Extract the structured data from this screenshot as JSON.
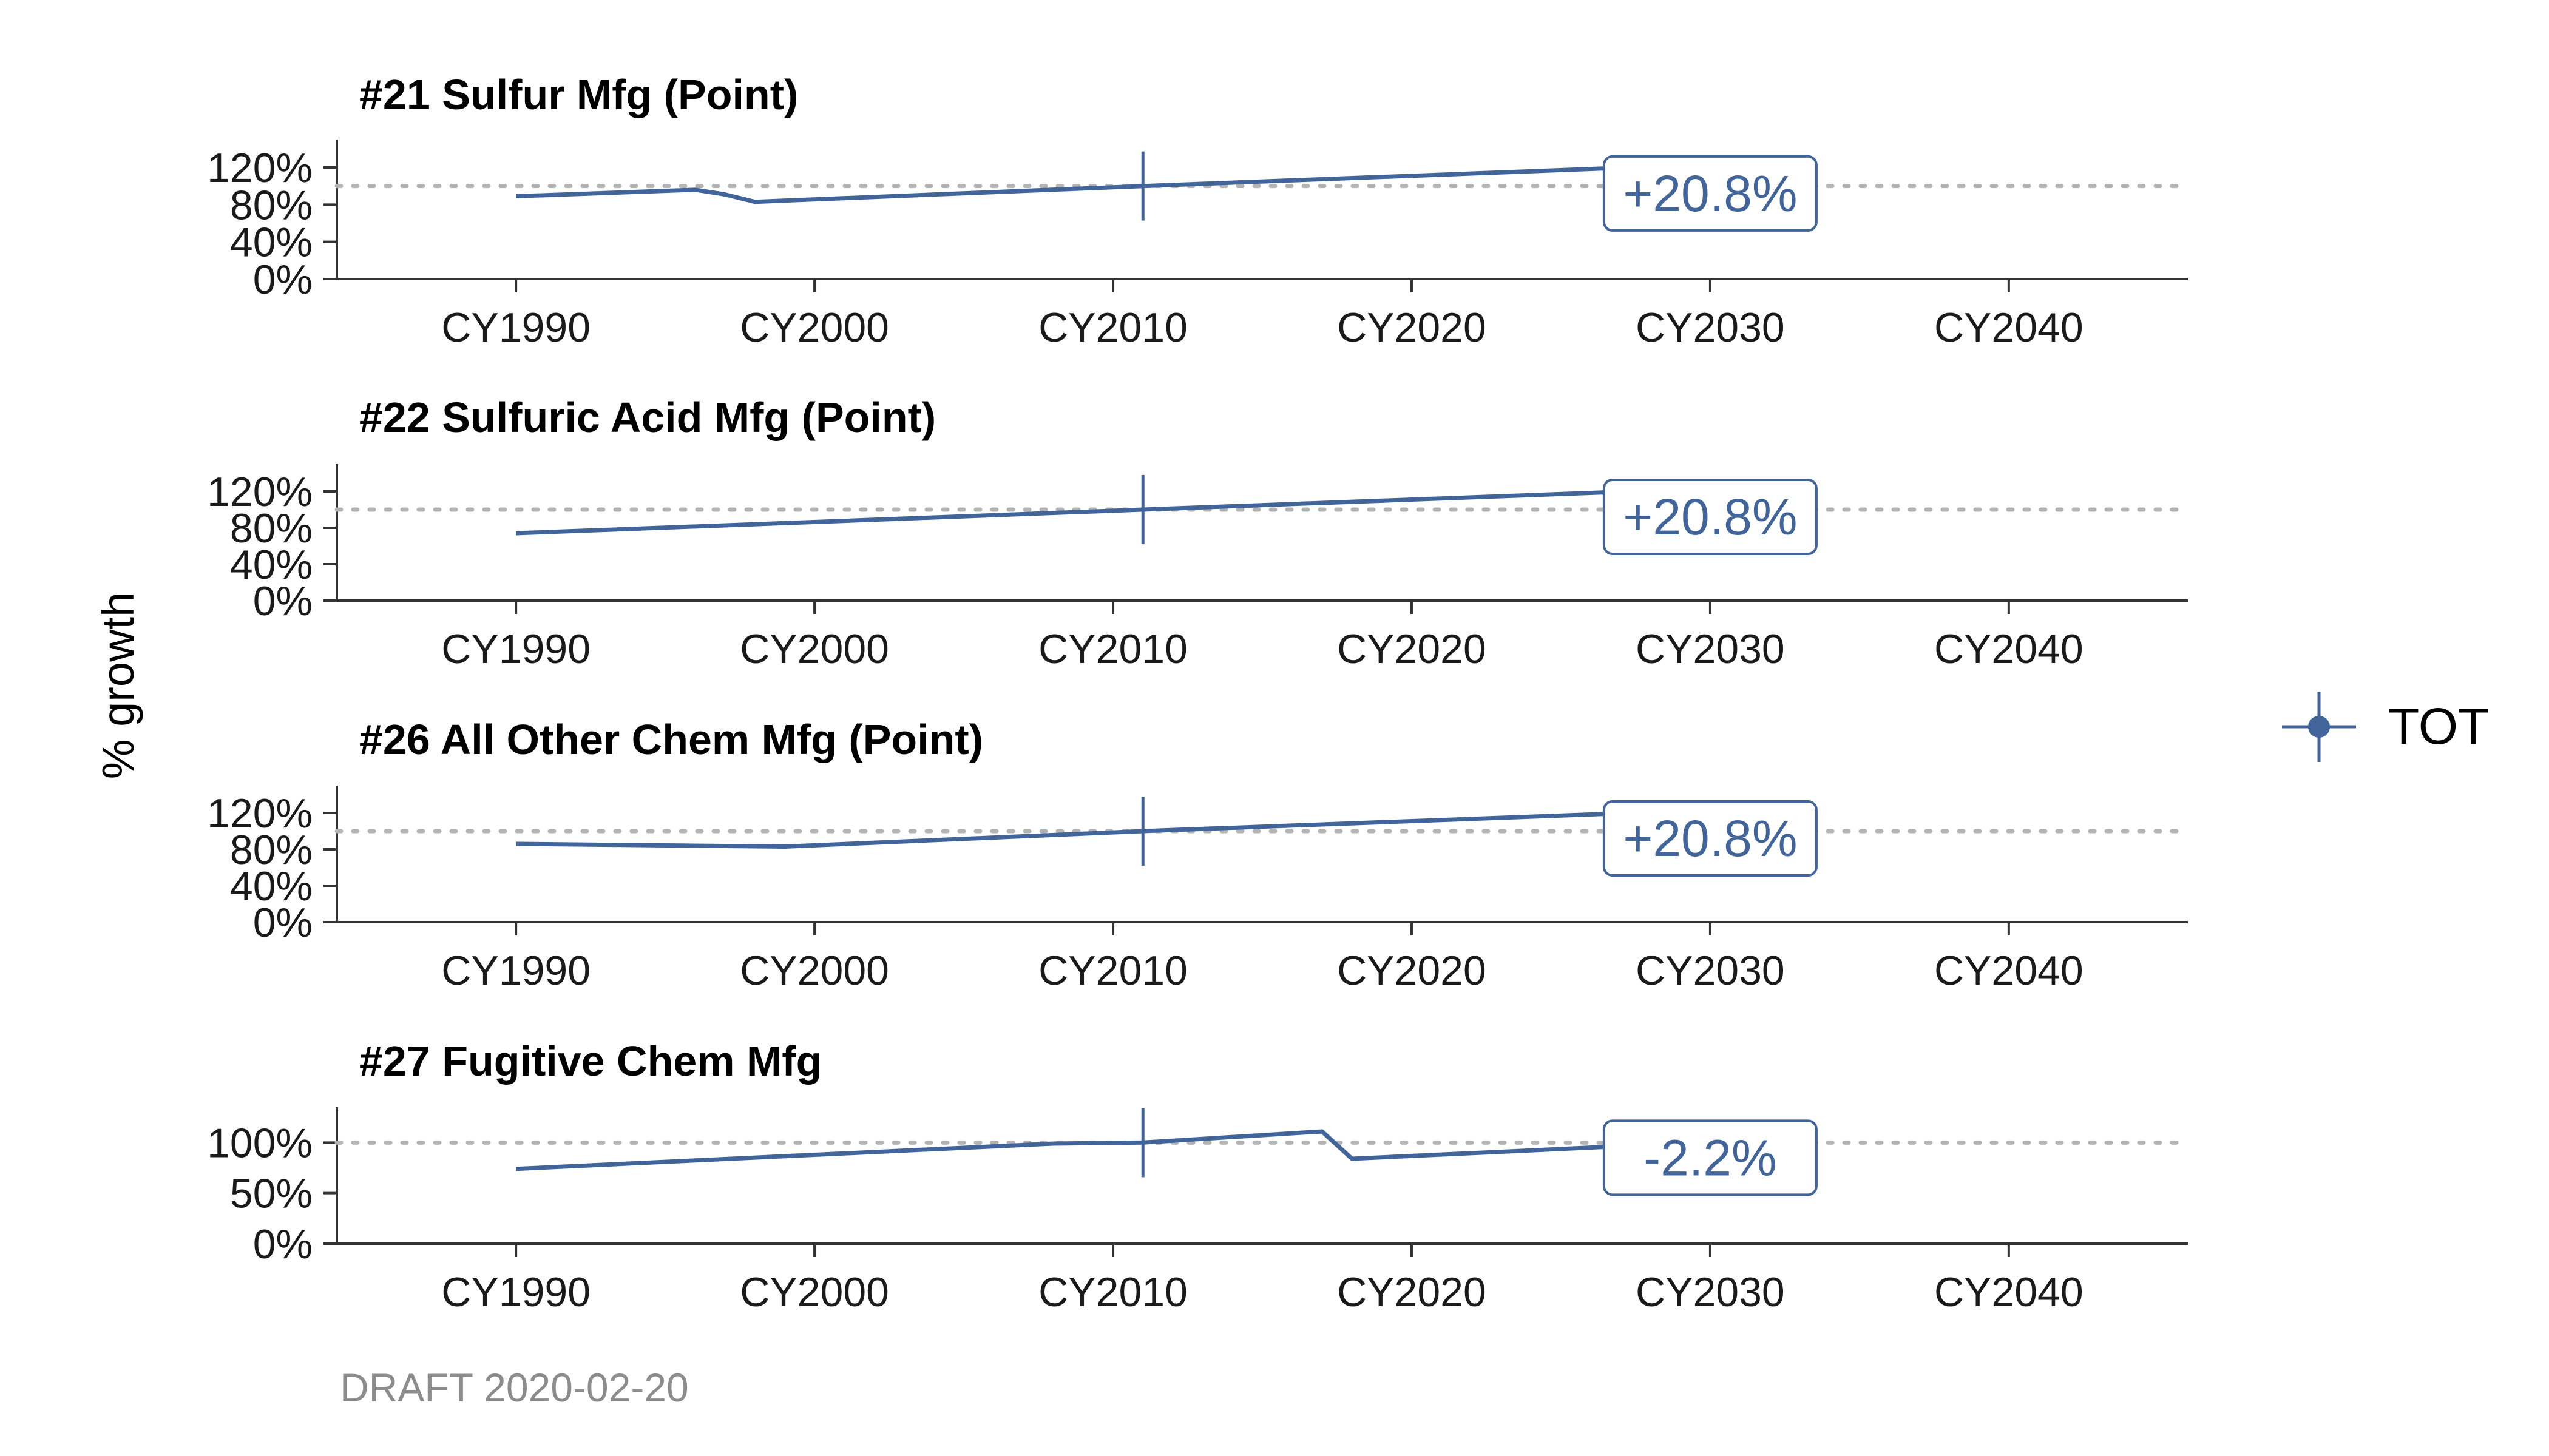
{
  "colors": {
    "series": "#41659a",
    "reference": "#b3b3b3",
    "axis": "#333333",
    "caption": "#8c8c8c"
  },
  "ylabel": "% growth",
  "caption": "DRAFT 2020-02-20",
  "legend": {
    "label": "TOT",
    "placement": "right"
  },
  "x_ticks": [
    {
      "value": 1990,
      "label": "CY1990"
    },
    {
      "value": 2000,
      "label": "CY2000"
    },
    {
      "value": 2010,
      "label": "CY2010"
    },
    {
      "value": 2020,
      "label": "CY2020"
    },
    {
      "value": 2030,
      "label": "CY2030"
    },
    {
      "value": 2040,
      "label": "CY2040"
    }
  ],
  "chart_data": [
    {
      "type": "line",
      "title": "#21 Sulfur Mfg (Point)",
      "xlim": [
        1984,
        2046
      ],
      "ylim": [
        0,
        1.5
      ],
      "y_ticks": [
        {
          "value": 0,
          "label": "0%"
        },
        {
          "value": 0.4,
          "label": "40%"
        },
        {
          "value": 0.8,
          "label": "80%"
        },
        {
          "value": 1.2,
          "label": "120%"
        }
      ],
      "reference_y": 1.0,
      "base_year": 2011,
      "annotation": {
        "text": "+20.8%",
        "x": 2030,
        "y": 0.92
      },
      "series": [
        {
          "x": [
            1990,
            1996,
            1997,
            1998,
            2011,
            2028
          ],
          "values": [
            0.89,
            0.96,
            0.91,
            0.83,
            1.0,
            1.208
          ]
        }
      ]
    },
    {
      "type": "line",
      "title": "#22 Sulfuric Acid Mfg (Point)",
      "xlim": [
        1984,
        2046
      ],
      "ylim": [
        0,
        1.5
      ],
      "y_ticks": [
        {
          "value": 0,
          "label": "0%"
        },
        {
          "value": 0.4,
          "label": "40%"
        },
        {
          "value": 0.8,
          "label": "80%"
        },
        {
          "value": 1.2,
          "label": "120%"
        }
      ],
      "reference_y": 1.0,
      "base_year": 2011,
      "annotation": {
        "text": "+20.8%",
        "x": 2030,
        "y": 0.92
      },
      "series": [
        {
          "x": [
            1990,
            2011,
            2028
          ],
          "values": [
            0.74,
            1.0,
            1.208
          ]
        }
      ]
    },
    {
      "type": "line",
      "title": "#26 All Other Chem Mfg (Point)",
      "xlim": [
        1984,
        2046
      ],
      "ylim": [
        0,
        1.5
      ],
      "y_ticks": [
        {
          "value": 0,
          "label": "0%"
        },
        {
          "value": 0.4,
          "label": "40%"
        },
        {
          "value": 0.8,
          "label": "80%"
        },
        {
          "value": 1.2,
          "label": "120%"
        }
      ],
      "reference_y": 1.0,
      "base_year": 2011,
      "annotation": {
        "text": "+20.8%",
        "x": 2030,
        "y": 0.92
      },
      "series": [
        {
          "x": [
            1990,
            1999,
            2011,
            2028
          ],
          "values": [
            0.86,
            0.83,
            1.0,
            1.208
          ]
        }
      ]
    },
    {
      "type": "line",
      "title": "#27 Fugitive Chem Mfg",
      "xlim": [
        1984,
        2046
      ],
      "ylim": [
        0,
        1.35
      ],
      "y_ticks": [
        {
          "value": 0,
          "label": "0%"
        },
        {
          "value": 0.5,
          "label": "50%"
        },
        {
          "value": 1.0,
          "label": "100%"
        }
      ],
      "reference_y": 1.0,
      "base_year": 2011,
      "annotation": {
        "text": "-2.2%",
        "x": 2030,
        "y": 0.85
      },
      "series": [
        {
          "x": [
            1990,
            2008,
            2011,
            2017,
            2018,
            2028
          ],
          "values": [
            0.74,
            0.99,
            1.0,
            1.11,
            0.84,
            0.978
          ]
        }
      ]
    }
  ]
}
